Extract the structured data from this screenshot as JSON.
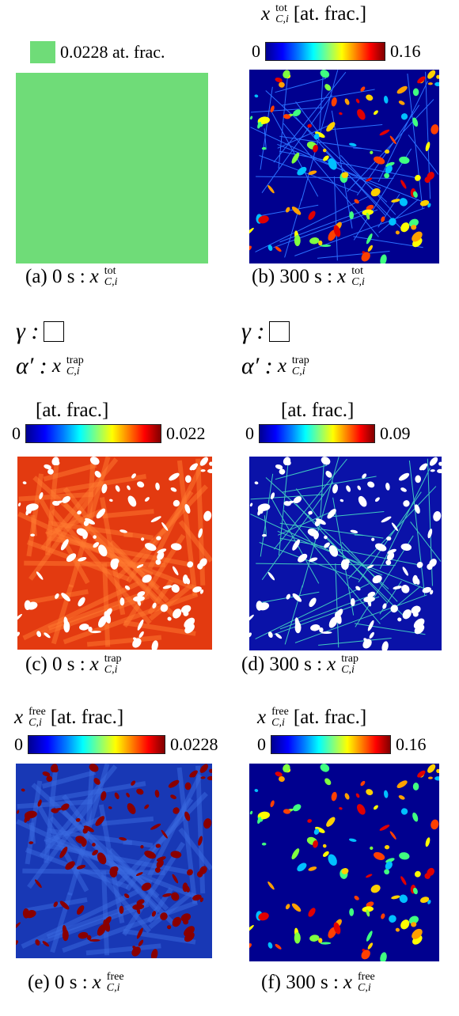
{
  "legend": {
    "label": "0.0228 at. frac."
  },
  "panels": [
    {
      "caption": {
        "prefix": "(a) 0 s :",
        "var": "x",
        "sup": "tot",
        "sub": "C,i"
      }
    },
    {
      "header": {
        "var": "x",
        "sup": "tot",
        "sub": "C,i",
        "unit": "[at. frac.]"
      },
      "colorbar": {
        "min": 0,
        "max": 0.16
      },
      "caption": {
        "prefix": "(b) 300 s :",
        "var": "x",
        "sup": "tot",
        "sub": "C,i"
      }
    },
    {
      "phase_legend": {
        "gamma": "γ :",
        "alpha": "α′ :",
        "var": "x",
        "sup": "trap",
        "sub": "C,i"
      },
      "header": {
        "unit": "[at. frac.]"
      },
      "colorbar": {
        "min": 0,
        "max": 0.022
      },
      "caption": {
        "prefix": "(c) 0 s :",
        "var": "x",
        "sup": "trap",
        "sub": "C,i"
      }
    },
    {
      "phase_legend": {
        "gamma": "γ :",
        "alpha": "α′ :",
        "var": "x",
        "sup": "trap",
        "sub": "C,i"
      },
      "header": {
        "unit": "[at. frac.]"
      },
      "colorbar": {
        "min": 0,
        "max": 0.09
      },
      "caption": {
        "prefix": "(d) 300 s :",
        "var": "x",
        "sup": "trap",
        "sub": "C,i"
      }
    },
    {
      "header": {
        "var": "x",
        "sup": "free",
        "sub": "C,i",
        "unit": "[at. frac.]"
      },
      "colorbar": {
        "min": 0,
        "max": 0.0228
      },
      "caption": {
        "prefix": "(e) 0 s :",
        "var": "x",
        "sup": "free",
        "sub": "C,i"
      }
    },
    {
      "header": {
        "var": "x",
        "sup": "free",
        "sub": "C,i",
        "unit": "[at. frac.]"
      },
      "colorbar": {
        "min": 0,
        "max": 0.16
      },
      "caption": {
        "prefix": "(f) 300 s :",
        "var": "x",
        "sup": "free",
        "sub": "C,i"
      }
    }
  ]
}
